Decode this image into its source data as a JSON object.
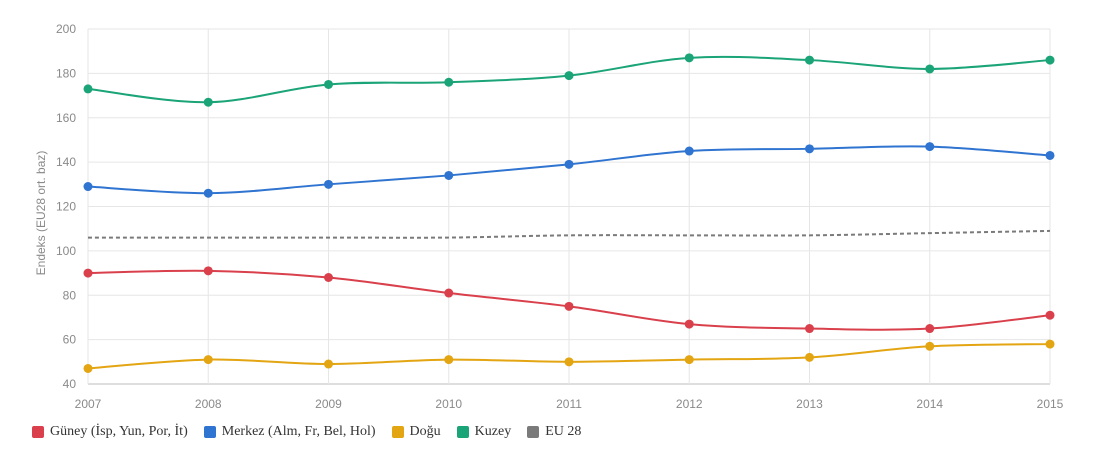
{
  "chart_data": {
    "type": "line",
    "ylabel": "Endeks (EU28 ort. baz)",
    "ylim": [
      40,
      200
    ],
    "yticks": [
      "40",
      "60",
      "80",
      "100",
      "120",
      "140",
      "160",
      "180",
      "200"
    ],
    "x": [
      "2007",
      "2008",
      "2009",
      "2010",
      "2011",
      "2012",
      "2013",
      "2014",
      "2015"
    ],
    "grid": true,
    "legend_position": "bottom-left",
    "series": [
      {
        "name": "Güney (İsp, Yun, Por, İt)",
        "color": "#d9404b",
        "values": [
          90,
          91,
          88,
          81,
          75,
          67,
          65,
          65,
          71
        ],
        "markers": true,
        "dashed": false
      },
      {
        "name": "Merkez (Alm, Fr, Bel, Hol)",
        "color": "#2f74d0",
        "values": [
          129,
          126,
          130,
          134,
          139,
          145,
          146,
          147,
          143
        ],
        "markers": true,
        "dashed": false
      },
      {
        "name": "Doğu",
        "color": "#e3a512",
        "values": [
          47,
          51,
          49,
          51,
          50,
          51,
          52,
          57,
          58
        ],
        "markers": true,
        "dashed": false
      },
      {
        "name": "Kuzey",
        "color": "#1aa477",
        "values": [
          173,
          167,
          175,
          176,
          179,
          187,
          186,
          182,
          186
        ],
        "markers": true,
        "dashed": false
      },
      {
        "name": "EU 28",
        "color": "#7a7a7a",
        "values": [
          106,
          106,
          106,
          106,
          107,
          107,
          107,
          108,
          109
        ],
        "markers": false,
        "dashed": true
      }
    ]
  }
}
